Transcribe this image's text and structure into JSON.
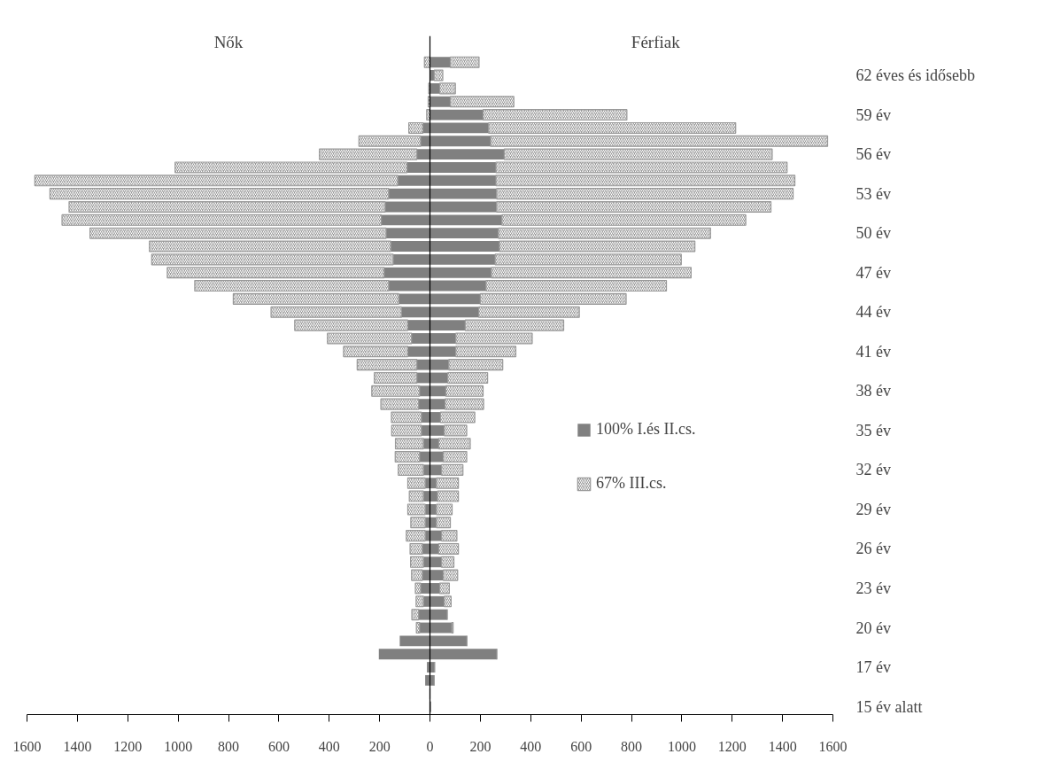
{
  "chart_data": {
    "type": "bar",
    "orientation": "horizontal",
    "stacked": true,
    "annotations": [
      "Nők",
      "Férfiak"
    ],
    "categories": [
      null,
      "62 éves és idősebb",
      null,
      null,
      "59 év",
      null,
      null,
      "56 év",
      null,
      null,
      "53 év",
      null,
      null,
      "50 év",
      null,
      null,
      "47 év",
      null,
      null,
      "44 év",
      null,
      null,
      "41 év",
      null,
      null,
      "38 év",
      null,
      null,
      "35 év",
      null,
      null,
      "32 év",
      null,
      null,
      "29 év",
      null,
      null,
      "26 év",
      null,
      null,
      "23 év",
      null,
      null,
      "20 év",
      null,
      null,
      "17 év",
      null,
      null,
      "15 év alatt"
    ],
    "series": [
      {
        "color": "#808080",
        "values": [
          0,
          0,
          0,
          0,
          0,
          -28,
          -37,
          -52,
          -91,
          -128,
          -164,
          -178,
          -193,
          -174,
          -156,
          -146,
          -182,
          -164,
          -124,
          -113,
          -88,
          -73,
          -88,
          -52,
          -52,
          -41,
          -45,
          -34,
          -34,
          -26,
          -41,
          -26,
          -19,
          -26,
          -19,
          -19,
          -19,
          -30,
          -26,
          -30,
          -37,
          -26,
          -45,
          -41,
          -120,
          -203,
          -12,
          -19,
          0,
          0
        ]
      },
      {
        "color": "#999999",
        "values": [
          -22,
          null,
          -5,
          -7,
          -13,
          -56,
          -245,
          -387,
          -921,
          -1441,
          -1345,
          -1255,
          -1268,
          -1176,
          -958,
          -959,
          -861,
          -770,
          -657,
          -518,
          -449,
          -334,
          -255,
          -237,
          -169,
          -190,
          -150,
          -119,
          -118,
          -111,
          -97,
          -100,
          -69,
          -56,
          -69,
          -57,
          -75,
          -49,
          -51,
          -43,
          -21,
          -29,
          -27,
          -13,
          0,
          0,
          0,
          0,
          0,
          0
        ]
      },
      {
        "name": "100% I.és II.cs.",
        "color": "#808080",
        "values": [
          81,
          17,
          39,
          81,
          211,
          233,
          241,
          295,
          262,
          262,
          265,
          265,
          286,
          272,
          276,
          259,
          244,
          223,
          200,
          194,
          140,
          103,
          103,
          75,
          71,
          63,
          60,
          42,
          57,
          35,
          53,
          46,
          26,
          30,
          26,
          26,
          46,
          35,
          46,
          53,
          39,
          57,
          69,
          87,
          147,
          266,
          19,
          17,
          0,
          3
        ]
      },
      {
        "name": "67% III.cs.",
        "color": "#999999",
        "values": [
          114,
          34,
          62,
          252,
          571,
          981,
          1338,
          1064,
          1156,
          1187,
          1177,
          1089,
          968,
          842,
          776,
          739,
          793,
          716,
          579,
          399,
          391,
          303,
          238,
          214,
          158,
          148,
          153,
          136,
          89,
          125,
          93,
          85,
          87,
          83,
          62,
          55,
          61,
          78,
          49,
          57,
          38,
          27,
          0,
          5,
          0,
          0,
          0,
          0,
          0,
          0
        ]
      }
    ],
    "xlim": [
      -1600,
      1600
    ],
    "xticks": [
      {
        "value": -1600,
        "label": "1600"
      },
      {
        "value": -1400,
        "label": "1400"
      },
      {
        "value": -1200,
        "label": "1200"
      },
      {
        "value": -1000,
        "label": "1000"
      },
      {
        "value": -800,
        "label": "800"
      },
      {
        "value": -600,
        "label": "600"
      },
      {
        "value": -400,
        "label": "400"
      },
      {
        "value": -200,
        "label": "200"
      },
      0,
      200,
      400,
      600,
      800,
      1000,
      1200,
      1400,
      1600
    ],
    "ref_lines": [
      {
        "axis": "x",
        "value": 0,
        "color": "#000000"
      }
    ],
    "grid": false,
    "legend": "right"
  }
}
